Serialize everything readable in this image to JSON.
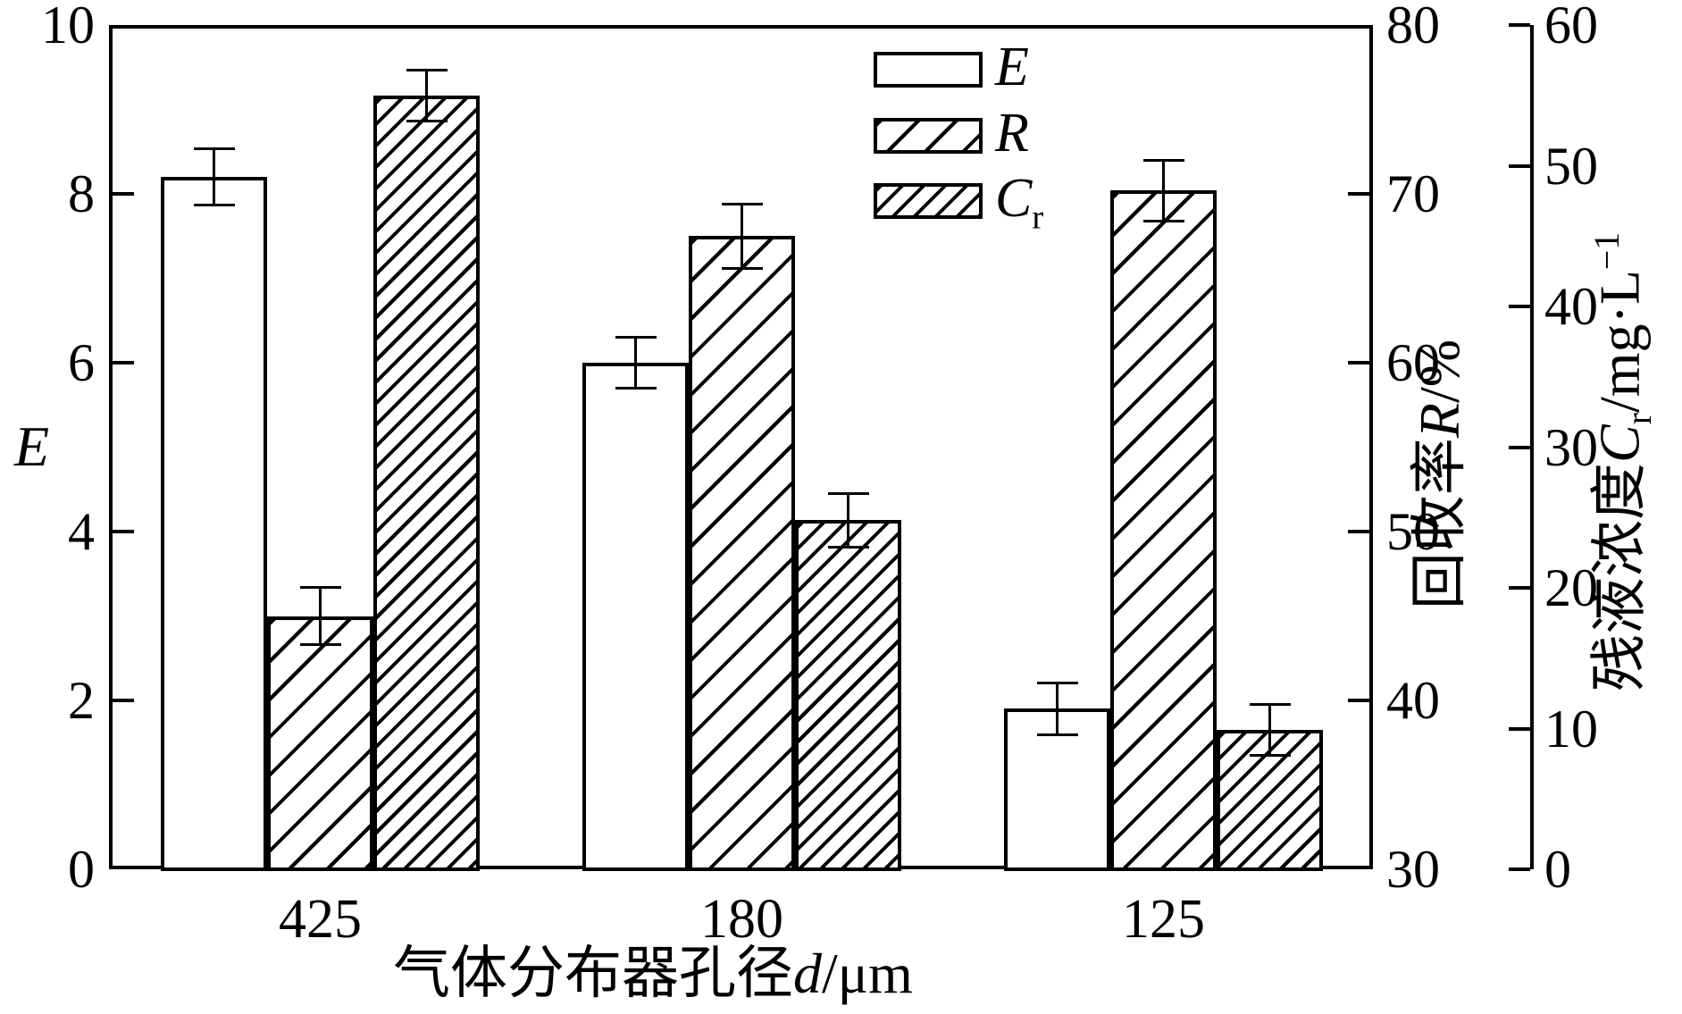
{
  "figure_background": "#ffffff",
  "ink_color": "#000000",
  "chart_data": {
    "type": "bar",
    "title": "",
    "categories": [
      "425",
      "180",
      "125"
    ],
    "xlabel_parts": {
      "prefix": "气体分布器孔径",
      "var": "d",
      "suffix": "/μm"
    },
    "axes": {
      "left": {
        "label": "E",
        "range": [
          0,
          10
        ],
        "ticks": [
          0,
          2,
          4,
          6,
          8,
          10
        ],
        "tick_labels": [
          "0",
          "2",
          "4",
          "6",
          "8",
          "10"
        ]
      },
      "right": {
        "label_prefix": "回收率",
        "label_var": "R",
        "label_suffix": "/%",
        "range": [
          30,
          80
        ],
        "ticks": [
          30,
          40,
          50,
          60,
          70,
          80
        ],
        "tick_labels": [
          "30",
          "40",
          "50",
          "60",
          "70",
          "80"
        ]
      },
      "far_right": {
        "label_prefix": "残液浓度",
        "label_var": "C",
        "label_sub": "r",
        "label_suffix": "/mg·L",
        "label_sup": "−1",
        "range": [
          0,
          60
        ],
        "ticks": [
          0,
          10,
          20,
          30,
          40,
          50,
          60
        ],
        "tick_labels": [
          "0",
          "10",
          "20",
          "30",
          "40",
          "50",
          "60"
        ]
      }
    },
    "grid": "off",
    "legend_position": "upper-center-right-inside",
    "series": [
      {
        "name": "E",
        "axis": "left",
        "pattern": "solid-white",
        "values": [
          8.2,
          6.0,
          1.9
        ],
        "errors": [
          0.33,
          0.3,
          0.31
        ]
      },
      {
        "name": "R",
        "axis": "right",
        "pattern": "hatch-sparse",
        "values": [
          45.0,
          67.5,
          70.2
        ],
        "errors": [
          1.7,
          1.9,
          1.8
        ]
      },
      {
        "name": "Cr",
        "axis": "far_right",
        "pattern": "hatch-dense",
        "values": [
          55.0,
          24.8,
          9.9
        ],
        "errors": [
          1.8,
          1.9,
          1.8
        ]
      }
    ],
    "legend": [
      {
        "label": "E",
        "sub": "",
        "pattern": "solid-white"
      },
      {
        "label": "R",
        "sub": "",
        "pattern": "hatch-sparse"
      },
      {
        "label": "C",
        "sub": "r",
        "pattern": "hatch-dense"
      }
    ]
  }
}
